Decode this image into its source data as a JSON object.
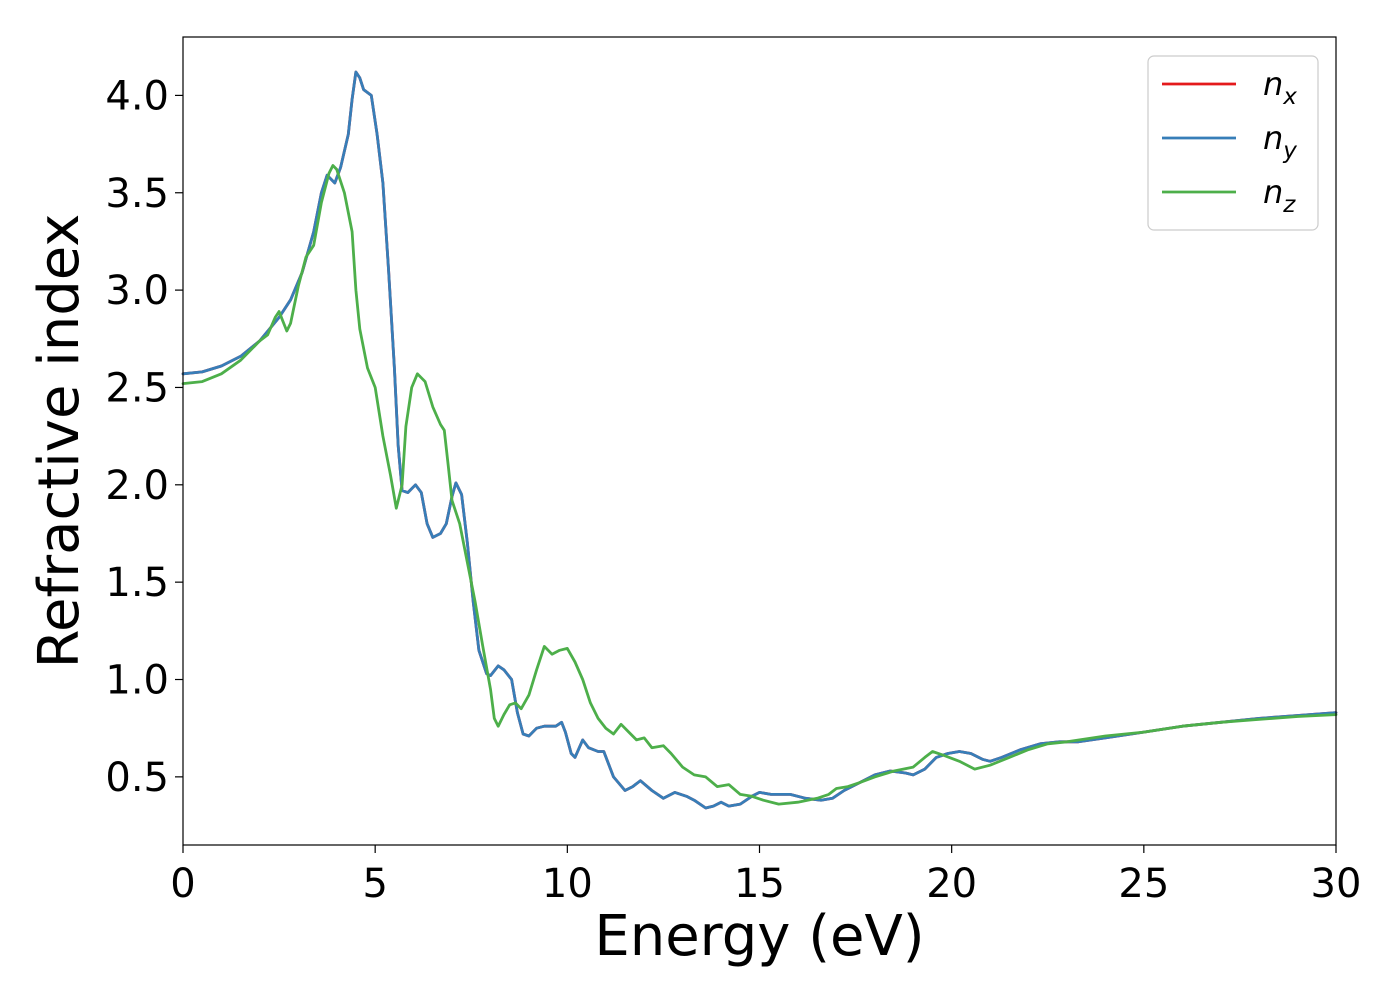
{
  "chart_data": {
    "type": "line",
    "title": "",
    "xlabel": "Energy (eV)",
    "ylabel": "Refractive index",
    "xlim": [
      0,
      30
    ],
    "ylim": [
      0.15,
      4.3
    ],
    "xticks": [
      0,
      5,
      10,
      15,
      20,
      25,
      30
    ],
    "yticks": [
      0.5,
      1.0,
      1.5,
      2.0,
      2.5,
      3.0,
      3.5,
      4.0
    ],
    "xtick_labels": [
      "0",
      "5",
      "10",
      "15",
      "20",
      "25",
      "30"
    ],
    "ytick_labels": [
      "0.5",
      "1.0",
      "1.5",
      "2.0",
      "2.5",
      "3.0",
      "3.5",
      "4.0"
    ],
    "grid": false,
    "legend_position": "top-right",
    "series": [
      {
        "name": "n",
        "sub": "x",
        "color": "#e41a1c",
        "points": [
          [
            0,
            2.57
          ],
          [
            0.5,
            2.58
          ],
          [
            1.0,
            2.61
          ],
          [
            1.5,
            2.66
          ],
          [
            2.0,
            2.74
          ],
          [
            2.5,
            2.86
          ],
          [
            2.8,
            2.95
          ],
          [
            3.1,
            3.09
          ],
          [
            3.4,
            3.3
          ],
          [
            3.6,
            3.5
          ],
          [
            3.75,
            3.59
          ],
          [
            3.95,
            3.55
          ],
          [
            4.1,
            3.63
          ],
          [
            4.3,
            3.8
          ],
          [
            4.4,
            3.98
          ],
          [
            4.5,
            4.12
          ],
          [
            4.6,
            4.09
          ],
          [
            4.7,
            4.03
          ],
          [
            4.9,
            4.0
          ],
          [
            5.05,
            3.8
          ],
          [
            5.2,
            3.55
          ],
          [
            5.35,
            3.1
          ],
          [
            5.5,
            2.6
          ],
          [
            5.6,
            2.2
          ],
          [
            5.7,
            1.97
          ],
          [
            5.85,
            1.96
          ],
          [
            6.05,
            2.0
          ],
          [
            6.2,
            1.96
          ],
          [
            6.35,
            1.8
          ],
          [
            6.5,
            1.73
          ],
          [
            6.7,
            1.75
          ],
          [
            6.85,
            1.8
          ],
          [
            7.0,
            1.94
          ],
          [
            7.1,
            2.01
          ],
          [
            7.25,
            1.95
          ],
          [
            7.4,
            1.7
          ],
          [
            7.55,
            1.4
          ],
          [
            7.7,
            1.15
          ],
          [
            7.9,
            1.03
          ],
          [
            8.0,
            1.02
          ],
          [
            8.2,
            1.07
          ],
          [
            8.35,
            1.05
          ],
          [
            8.55,
            1.0
          ],
          [
            8.7,
            0.83
          ],
          [
            8.85,
            0.72
          ],
          [
            9.0,
            0.71
          ],
          [
            9.2,
            0.75
          ],
          [
            9.4,
            0.76
          ],
          [
            9.7,
            0.76
          ],
          [
            9.85,
            0.78
          ],
          [
            9.95,
            0.73
          ],
          [
            10.1,
            0.62
          ],
          [
            10.2,
            0.6
          ],
          [
            10.4,
            0.69
          ],
          [
            10.55,
            0.65
          ],
          [
            10.8,
            0.63
          ],
          [
            10.95,
            0.63
          ],
          [
            11.2,
            0.5
          ],
          [
            11.5,
            0.43
          ],
          [
            11.7,
            0.45
          ],
          [
            11.9,
            0.48
          ],
          [
            12.2,
            0.43
          ],
          [
            12.5,
            0.39
          ],
          [
            12.8,
            0.42
          ],
          [
            13.1,
            0.4
          ],
          [
            13.3,
            0.38
          ],
          [
            13.6,
            0.34
          ],
          [
            13.8,
            0.35
          ],
          [
            14.0,
            0.37
          ],
          [
            14.2,
            0.35
          ],
          [
            14.5,
            0.36
          ],
          [
            14.8,
            0.4
          ],
          [
            15.0,
            0.42
          ],
          [
            15.3,
            0.41
          ],
          [
            15.8,
            0.41
          ],
          [
            16.2,
            0.39
          ],
          [
            16.6,
            0.38
          ],
          [
            16.9,
            0.39
          ],
          [
            17.2,
            0.43
          ],
          [
            17.6,
            0.47
          ],
          [
            18.0,
            0.51
          ],
          [
            18.4,
            0.53
          ],
          [
            18.8,
            0.52
          ],
          [
            19.0,
            0.51
          ],
          [
            19.3,
            0.54
          ],
          [
            19.6,
            0.6
          ],
          [
            19.9,
            0.62
          ],
          [
            20.2,
            0.63
          ],
          [
            20.5,
            0.62
          ],
          [
            20.8,
            0.59
          ],
          [
            21.0,
            0.58
          ],
          [
            21.3,
            0.6
          ],
          [
            21.8,
            0.64
          ],
          [
            22.3,
            0.67
          ],
          [
            22.8,
            0.68
          ],
          [
            23.3,
            0.68
          ],
          [
            24.0,
            0.7
          ],
          [
            25.0,
            0.73
          ],
          [
            26.0,
            0.76
          ],
          [
            27.0,
            0.78
          ],
          [
            28.0,
            0.8
          ],
          [
            29.0,
            0.815
          ],
          [
            30.0,
            0.83
          ]
        ]
      },
      {
        "name": "n",
        "sub": "y",
        "color": "#377eb8",
        "points": [
          [
            0,
            2.57
          ],
          [
            0.5,
            2.58
          ],
          [
            1.0,
            2.61
          ],
          [
            1.5,
            2.66
          ],
          [
            2.0,
            2.74
          ],
          [
            2.5,
            2.86
          ],
          [
            2.8,
            2.95
          ],
          [
            3.1,
            3.09
          ],
          [
            3.4,
            3.3
          ],
          [
            3.6,
            3.5
          ],
          [
            3.75,
            3.59
          ],
          [
            3.95,
            3.55
          ],
          [
            4.1,
            3.63
          ],
          [
            4.3,
            3.8
          ],
          [
            4.4,
            3.98
          ],
          [
            4.5,
            4.12
          ],
          [
            4.6,
            4.09
          ],
          [
            4.7,
            4.03
          ],
          [
            4.9,
            4.0
          ],
          [
            5.05,
            3.8
          ],
          [
            5.2,
            3.55
          ],
          [
            5.35,
            3.1
          ],
          [
            5.5,
            2.6
          ],
          [
            5.6,
            2.2
          ],
          [
            5.7,
            1.97
          ],
          [
            5.85,
            1.96
          ],
          [
            6.05,
            2.0
          ],
          [
            6.2,
            1.96
          ],
          [
            6.35,
            1.8
          ],
          [
            6.5,
            1.73
          ],
          [
            6.7,
            1.75
          ],
          [
            6.85,
            1.8
          ],
          [
            7.0,
            1.94
          ],
          [
            7.1,
            2.01
          ],
          [
            7.25,
            1.95
          ],
          [
            7.4,
            1.7
          ],
          [
            7.55,
            1.4
          ],
          [
            7.7,
            1.15
          ],
          [
            7.9,
            1.03
          ],
          [
            8.0,
            1.02
          ],
          [
            8.2,
            1.07
          ],
          [
            8.35,
            1.05
          ],
          [
            8.55,
            1.0
          ],
          [
            8.7,
            0.83
          ],
          [
            8.85,
            0.72
          ],
          [
            9.0,
            0.71
          ],
          [
            9.2,
            0.75
          ],
          [
            9.4,
            0.76
          ],
          [
            9.7,
            0.76
          ],
          [
            9.85,
            0.78
          ],
          [
            9.95,
            0.73
          ],
          [
            10.1,
            0.62
          ],
          [
            10.2,
            0.6
          ],
          [
            10.4,
            0.69
          ],
          [
            10.55,
            0.65
          ],
          [
            10.8,
            0.63
          ],
          [
            10.95,
            0.63
          ],
          [
            11.2,
            0.5
          ],
          [
            11.5,
            0.43
          ],
          [
            11.7,
            0.45
          ],
          [
            11.9,
            0.48
          ],
          [
            12.2,
            0.43
          ],
          [
            12.5,
            0.39
          ],
          [
            12.8,
            0.42
          ],
          [
            13.1,
            0.4
          ],
          [
            13.3,
            0.38
          ],
          [
            13.6,
            0.34
          ],
          [
            13.8,
            0.35
          ],
          [
            14.0,
            0.37
          ],
          [
            14.2,
            0.35
          ],
          [
            14.5,
            0.36
          ],
          [
            14.8,
            0.4
          ],
          [
            15.0,
            0.42
          ],
          [
            15.3,
            0.41
          ],
          [
            15.8,
            0.41
          ],
          [
            16.2,
            0.39
          ],
          [
            16.6,
            0.38
          ],
          [
            16.9,
            0.39
          ],
          [
            17.2,
            0.43
          ],
          [
            17.6,
            0.47
          ],
          [
            18.0,
            0.51
          ],
          [
            18.4,
            0.53
          ],
          [
            18.8,
            0.52
          ],
          [
            19.0,
            0.51
          ],
          [
            19.3,
            0.54
          ],
          [
            19.6,
            0.6
          ],
          [
            19.9,
            0.62
          ],
          [
            20.2,
            0.63
          ],
          [
            20.5,
            0.62
          ],
          [
            20.8,
            0.59
          ],
          [
            21.0,
            0.58
          ],
          [
            21.3,
            0.6
          ],
          [
            21.8,
            0.64
          ],
          [
            22.3,
            0.67
          ],
          [
            22.8,
            0.68
          ],
          [
            23.3,
            0.68
          ],
          [
            24.0,
            0.7
          ],
          [
            25.0,
            0.73
          ],
          [
            26.0,
            0.76
          ],
          [
            27.0,
            0.78
          ],
          [
            28.0,
            0.8
          ],
          [
            29.0,
            0.815
          ],
          [
            30.0,
            0.83
          ]
        ]
      },
      {
        "name": "n",
        "sub": "z",
        "color": "#4daf4a",
        "points": [
          [
            0,
            2.52
          ],
          [
            0.5,
            2.53
          ],
          [
            1.0,
            2.57
          ],
          [
            1.5,
            2.64
          ],
          [
            2.0,
            2.74
          ],
          [
            2.2,
            2.77
          ],
          [
            2.4,
            2.86
          ],
          [
            2.5,
            2.89
          ],
          [
            2.6,
            2.84
          ],
          [
            2.7,
            2.79
          ],
          [
            2.8,
            2.83
          ],
          [
            3.0,
            3.02
          ],
          [
            3.2,
            3.17
          ],
          [
            3.4,
            3.23
          ],
          [
            3.6,
            3.45
          ],
          [
            3.8,
            3.6
          ],
          [
            3.9,
            3.64
          ],
          [
            4.0,
            3.62
          ],
          [
            4.2,
            3.5
          ],
          [
            4.4,
            3.3
          ],
          [
            4.5,
            3.0
          ],
          [
            4.6,
            2.8
          ],
          [
            4.8,
            2.6
          ],
          [
            5.0,
            2.5
          ],
          [
            5.2,
            2.25
          ],
          [
            5.4,
            2.05
          ],
          [
            5.55,
            1.88
          ],
          [
            5.7,
            2.0
          ],
          [
            5.8,
            2.3
          ],
          [
            5.95,
            2.5
          ],
          [
            6.1,
            2.57
          ],
          [
            6.3,
            2.53
          ],
          [
            6.5,
            2.4
          ],
          [
            6.7,
            2.31
          ],
          [
            6.8,
            2.28
          ],
          [
            6.9,
            2.1
          ],
          [
            7.0,
            1.92
          ],
          [
            7.2,
            1.8
          ],
          [
            7.4,
            1.6
          ],
          [
            7.6,
            1.4
          ],
          [
            7.8,
            1.17
          ],
          [
            8.0,
            0.95
          ],
          [
            8.1,
            0.8
          ],
          [
            8.2,
            0.76
          ],
          [
            8.35,
            0.82
          ],
          [
            8.5,
            0.87
          ],
          [
            8.65,
            0.88
          ],
          [
            8.8,
            0.85
          ],
          [
            9.0,
            0.92
          ],
          [
            9.2,
            1.05
          ],
          [
            9.4,
            1.17
          ],
          [
            9.6,
            1.13
          ],
          [
            9.8,
            1.15
          ],
          [
            10.0,
            1.16
          ],
          [
            10.2,
            1.09
          ],
          [
            10.4,
            1.0
          ],
          [
            10.6,
            0.88
          ],
          [
            10.8,
            0.8
          ],
          [
            11.0,
            0.75
          ],
          [
            11.2,
            0.72
          ],
          [
            11.4,
            0.77
          ],
          [
            11.6,
            0.73
          ],
          [
            11.8,
            0.69
          ],
          [
            12.0,
            0.7
          ],
          [
            12.2,
            0.65
          ],
          [
            12.5,
            0.66
          ],
          [
            12.7,
            0.62
          ],
          [
            13.0,
            0.55
          ],
          [
            13.3,
            0.51
          ],
          [
            13.6,
            0.5
          ],
          [
            13.9,
            0.45
          ],
          [
            14.2,
            0.46
          ],
          [
            14.5,
            0.41
          ],
          [
            14.8,
            0.4
          ],
          [
            15.1,
            0.38
          ],
          [
            15.5,
            0.36
          ],
          [
            16.0,
            0.37
          ],
          [
            16.5,
            0.39
          ],
          [
            16.8,
            0.41
          ],
          [
            17.0,
            0.44
          ],
          [
            17.3,
            0.45
          ],
          [
            17.6,
            0.47
          ],
          [
            18.0,
            0.5
          ],
          [
            18.5,
            0.53
          ],
          [
            19.0,
            0.55
          ],
          [
            19.3,
            0.6
          ],
          [
            19.5,
            0.63
          ],
          [
            19.8,
            0.61
          ],
          [
            20.2,
            0.58
          ],
          [
            20.6,
            0.54
          ],
          [
            21.0,
            0.56
          ],
          [
            21.5,
            0.6
          ],
          [
            22.0,
            0.64
          ],
          [
            22.5,
            0.67
          ],
          [
            23.0,
            0.68
          ],
          [
            24.0,
            0.71
          ],
          [
            25.0,
            0.73
          ],
          [
            26.0,
            0.76
          ],
          [
            27.0,
            0.78
          ],
          [
            28.0,
            0.795
          ],
          [
            29.0,
            0.81
          ],
          [
            30.0,
            0.82
          ]
        ]
      }
    ]
  }
}
